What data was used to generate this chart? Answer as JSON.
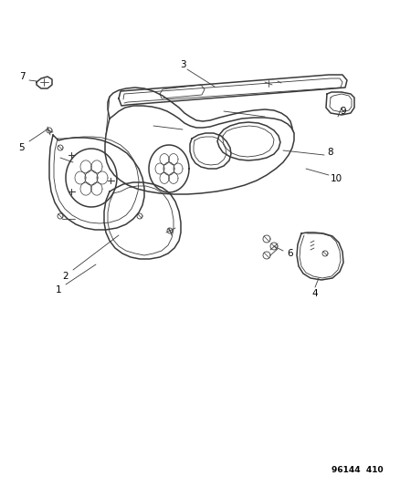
{
  "part_number": "96144  410",
  "bg": "#ffffff",
  "lc": "#3a3a3a",
  "lc2": "#555555",
  "fig_w": 4.39,
  "fig_h": 5.33,
  "dpi": 100,
  "label_fs": 7.5,
  "pn_fs": 6.5
}
